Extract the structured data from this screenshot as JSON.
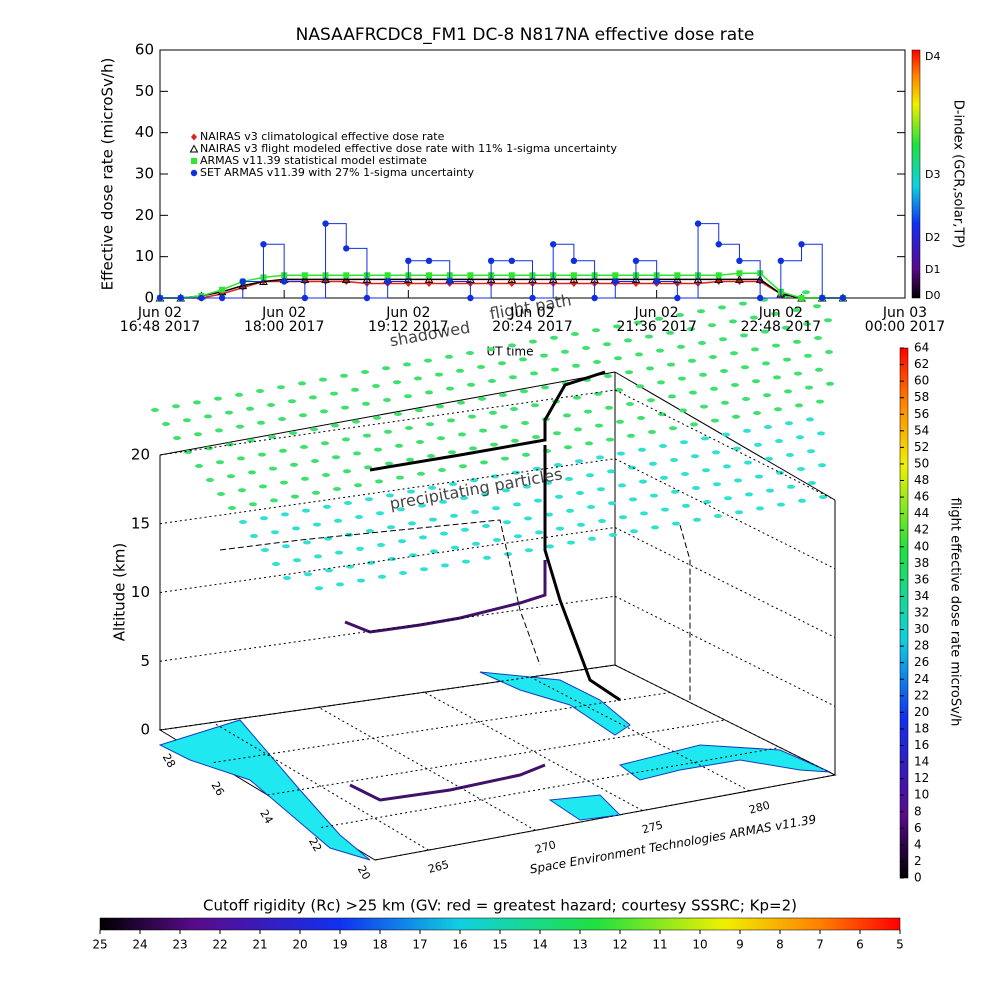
{
  "chart_data": [
    {
      "type": "line",
      "title": "NASAAFRCDC8_FM1 DC-8    N817NA effective dose rate",
      "ylabel": "Effective dose rate (microSv/h)",
      "xlabel": "UT time",
      "y2label": "D-index (GCR,solar,TP)",
      "d_index_labels": [
        "D0",
        "D1",
        "D2",
        "D3",
        "D4"
      ],
      "xlim": [
        "2017-06-02T16:48",
        "2017-06-03T00:00"
      ],
      "xticks": [
        {
          "value": "2017-06-02T16:48",
          "label": "Jun 02\n16:48 2017"
        },
        {
          "value": "2017-06-02T18:00",
          "label": "Jun 02\n18:00 2017"
        },
        {
          "value": "2017-06-02T19:12",
          "label": "Jun 02\n19:12 2017"
        },
        {
          "value": "2017-06-02T20:24",
          "label": "Jun 02\n20:24 2017"
        },
        {
          "value": "2017-06-02T21:36",
          "label": "Jun 02\n21:36 2017"
        },
        {
          "value": "2017-06-02T22:48",
          "label": "Jun 02\n22:48 2017"
        },
        {
          "value": "2017-06-03T00:00",
          "label": "Jun 03\n00:00 2017"
        }
      ],
      "ylim": [
        0,
        60
      ],
      "yticks": [
        0,
        10,
        20,
        30,
        40,
        50,
        60
      ],
      "x": [
        "2017-06-02T16:48",
        "2017-06-02T17:00",
        "2017-06-02T17:12",
        "2017-06-02T17:24",
        "2017-06-02T17:36",
        "2017-06-02T17:48",
        "2017-06-02T18:00",
        "2017-06-02T18:12",
        "2017-06-02T18:24",
        "2017-06-02T18:36",
        "2017-06-02T18:48",
        "2017-06-02T19:00",
        "2017-06-02T19:12",
        "2017-06-02T19:24",
        "2017-06-02T19:36",
        "2017-06-02T19:48",
        "2017-06-02T20:00",
        "2017-06-02T20:12",
        "2017-06-02T20:24",
        "2017-06-02T20:36",
        "2017-06-02T20:48",
        "2017-06-02T21:00",
        "2017-06-02T21:12",
        "2017-06-02T21:24",
        "2017-06-02T21:36",
        "2017-06-02T21:48",
        "2017-06-02T22:00",
        "2017-06-02T22:12",
        "2017-06-02T22:24",
        "2017-06-02T22:36",
        "2017-06-02T22:48",
        "2017-06-02T23:00",
        "2017-06-02T23:12",
        "2017-06-02T23:24"
      ],
      "series": [
        {
          "name": "NAIRAS v3 climatological effective dose rate",
          "color": "#e0201b",
          "marker": "diamond",
          "values": [
            0,
            0,
            0,
            1,
            2.5,
            4,
            4,
            4,
            4,
            4,
            3.5,
            3.5,
            3.5,
            3.5,
            3.5,
            3.5,
            3.5,
            3.5,
            3.5,
            3.5,
            3.5,
            3.5,
            3.5,
            3.5,
            3.5,
            3.5,
            3.5,
            4,
            4,
            4,
            1,
            0,
            0,
            0
          ]
        },
        {
          "name": "NAIRAS v3 flight modeled effective dose rate with 11% 1-sigma uncertainty",
          "color": "#000000",
          "marker": "triangle",
          "values": [
            0,
            0,
            0.5,
            1.5,
            3,
            4,
            4.5,
            4.5,
            4.5,
            4.5,
            4.5,
            4.5,
            4.5,
            4.5,
            4.5,
            4.5,
            4.5,
            4.5,
            4.5,
            4.5,
            4.5,
            4.5,
            4.5,
            4.5,
            4.5,
            4.5,
            4.5,
            4.5,
            4.5,
            4.5,
            1,
            0,
            0,
            0
          ]
        },
        {
          "name": "ARMAS v11.39 statistical model estimate",
          "color": "#2ee62e",
          "marker": "square",
          "values": [
            0,
            0,
            0.5,
            2,
            4,
            5,
            5.5,
            5.5,
            5.5,
            5.5,
            5.5,
            5.5,
            5.5,
            5.5,
            5.5,
            5.5,
            5.5,
            5.5,
            5.5,
            5.5,
            5.5,
            5.5,
            5.5,
            5.5,
            5.5,
            5.5,
            5.5,
            5.5,
            6,
            6,
            1.5,
            0,
            0,
            0
          ]
        },
        {
          "name": "SET ARMAS v11.39 with 27% 1-sigma uncertainty",
          "color": "#1030e0",
          "marker": "circle",
          "values": [
            0,
            0,
            0,
            0,
            4,
            13,
            4,
            0,
            18,
            12,
            0,
            4,
            9,
            9,
            4,
            0,
            9,
            9,
            0,
            13,
            9,
            0,
            4,
            9,
            4,
            0,
            18,
            13,
            9,
            0,
            9,
            13,
            0,
            0
          ]
        }
      ]
    },
    {
      "type": "scatter3d",
      "zlabel": "Altitude (km)",
      "zticks": [
        0,
        5,
        10,
        15,
        20
      ],
      "zlim": [
        0,
        20
      ],
      "latticks": [
        28,
        26,
        24,
        22,
        20
      ],
      "lonticks": [
        265,
        270,
        275,
        280
      ],
      "annotations": [
        "flight path",
        "shadowed",
        "precipitating particles"
      ],
      "credit": "Space Environment Technologies ARMAS v11.39"
    },
    {
      "type": "colorbar",
      "label": "flight effective dose rate microSv/h",
      "ticks": [
        0,
        2,
        4,
        6,
        8,
        10,
        12,
        14,
        16,
        18,
        20,
        22,
        24,
        26,
        28,
        30,
        32,
        34,
        36,
        38,
        40,
        42,
        44,
        46,
        48,
        50,
        52,
        54,
        56,
        58,
        60,
        62,
        64
      ],
      "lim": [
        0,
        64
      ]
    },
    {
      "type": "colorbar",
      "label": "Cutoff rigidity (Rc) >25 km (GV: red = greatest hazard; courtesy SSSRC; Kp=2)",
      "ticks": [
        25,
        24,
        23,
        22,
        21,
        20,
        19,
        18,
        17,
        16,
        15,
        14,
        13,
        12,
        11,
        10,
        9,
        8,
        7,
        6,
        5
      ],
      "lim": [
        25,
        5
      ]
    }
  ]
}
